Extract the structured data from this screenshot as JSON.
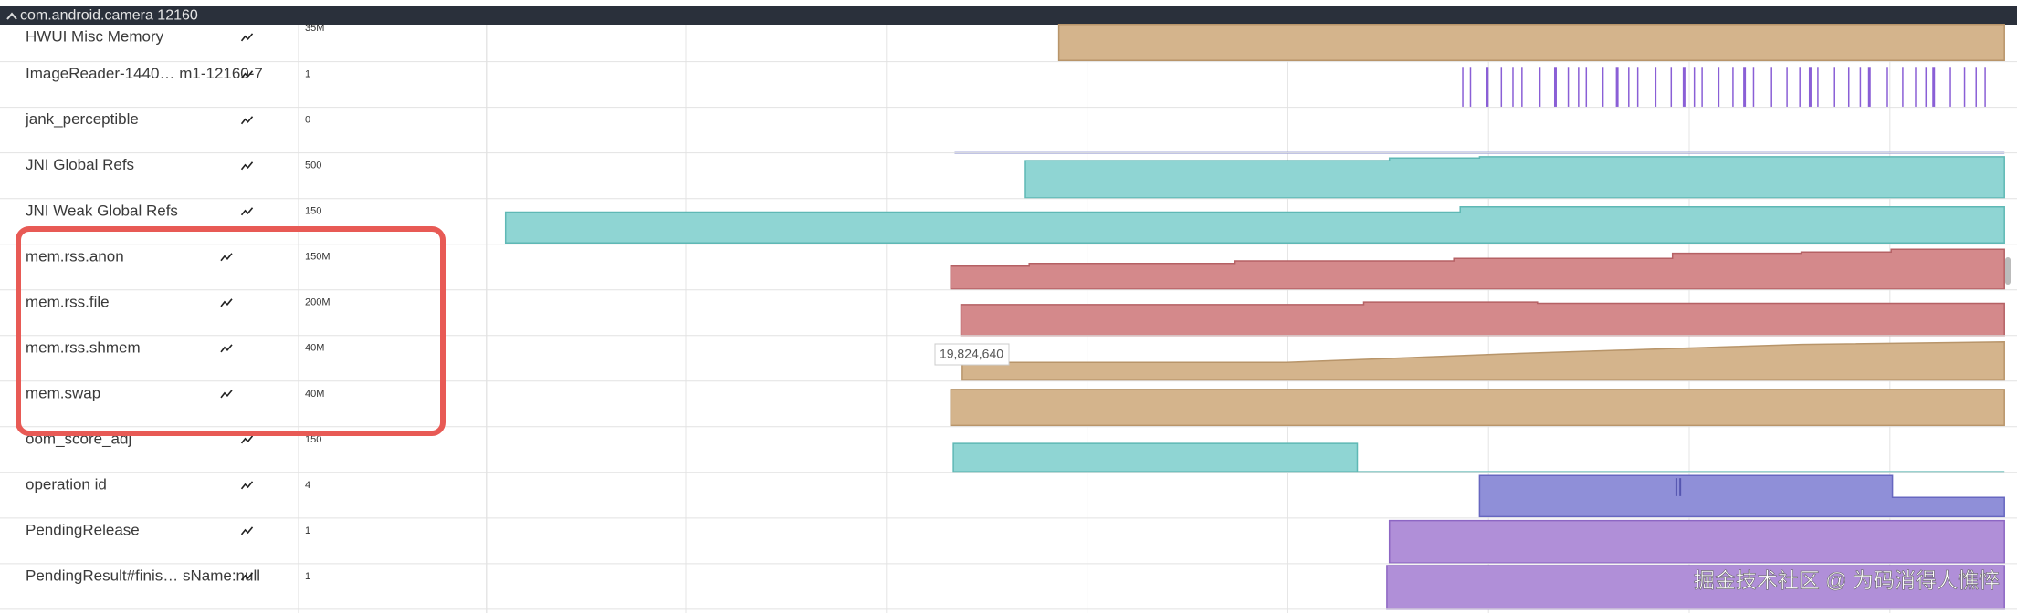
{
  "header": {
    "title": "com.android.camera 12160"
  },
  "tracks": [
    {
      "name": "HWUI Misc Memory",
      "scale": "35M"
    },
    {
      "name": "ImageReader-1440… m1-12160-7",
      "scale": "1"
    },
    {
      "name": "jank_perceptible",
      "scale": "0"
    },
    {
      "name": "JNI Global Refs",
      "scale": "500"
    },
    {
      "name": "JNI Weak Global Refs",
      "scale": "150"
    },
    {
      "name": "mem.rss.anon",
      "scale": "150M"
    },
    {
      "name": "mem.rss.file",
      "scale": "200M"
    },
    {
      "name": "mem.rss.shmem",
      "scale": "40M"
    },
    {
      "name": "mem.swap",
      "scale": "40M"
    },
    {
      "name": "oom_score_adj",
      "scale": "150"
    },
    {
      "name": "operation id",
      "scale": "4"
    },
    {
      "name": "PendingRelease",
      "scale": "1"
    },
    {
      "name": "PendingResult#finis… sName:null",
      "scale": "1"
    }
  ],
  "tooltip": "19,824,640",
  "watermark": "掘金技术社区 @ 为码消得人憔悴"
}
